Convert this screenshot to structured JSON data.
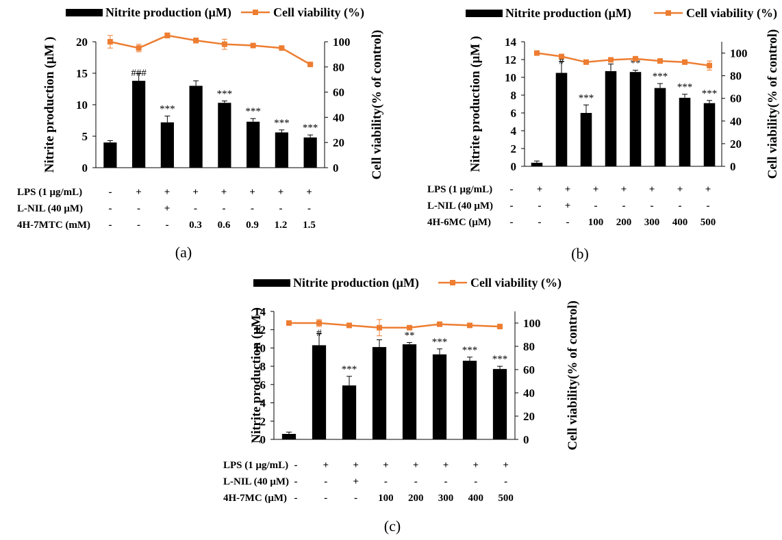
{
  "colors": {
    "bar": "#000000",
    "line": "#ED7D31",
    "axis": "#000000"
  },
  "legend": {
    "bar_label": "Nitrite production (μM)",
    "line_label": "Cell viability (%)"
  },
  "chart_data": [
    {
      "panel_label": "(a)",
      "type": "bar",
      "ylabel": "Nitrite production (μM )",
      "y2label": "Cell viability(% of control)",
      "ylim": [
        0,
        20
      ],
      "y_ticks": [
        0,
        5,
        10,
        15,
        20
      ],
      "y2lim": [
        0,
        100
      ],
      "y2_ticks": [
        0,
        20,
        40,
        60,
        80,
        100
      ],
      "condition_rows": [
        {
          "label": "LPS (1 μg/mL)",
          "values": [
            "-",
            "+",
            "+",
            "+",
            "+",
            "+",
            "+",
            "+"
          ]
        },
        {
          "label": "L-NIL (40 μM)",
          "values": [
            "-",
            "-",
            "+",
            "-",
            "-",
            "-",
            "-",
            "-"
          ]
        },
        {
          "label": "4H-7MTC (mM)",
          "values": [
            "-",
            "-",
            "-",
            "0.3",
            "0.6",
            "0.9",
            "1.2",
            "1.5"
          ]
        }
      ],
      "series": [
        {
          "name": "Nitrite production (μM)",
          "type": "bar",
          "values": [
            4.0,
            13.8,
            7.2,
            13.0,
            10.3,
            7.3,
            5.6,
            4.8
          ],
          "errors": [
            0.3,
            1.2,
            1.0,
            0.8,
            0.3,
            0.5,
            0.4,
            0.4
          ],
          "annotations": [
            "",
            "###",
            "***",
            "",
            "***",
            "***",
            "***",
            "***"
          ]
        },
        {
          "name": "Cell viability (%)",
          "type": "line",
          "axis": "right",
          "values": [
            100,
            95,
            105,
            101,
            98,
            97,
            95,
            82
          ],
          "errors": [
            5,
            3,
            2,
            2,
            4,
            1,
            1,
            1
          ]
        }
      ]
    },
    {
      "panel_label": "(b)",
      "type": "bar",
      "ylabel": "Nitrite production (μM )",
      "y2label": "Cell viability(% of control)",
      "ylim": [
        0,
        14
      ],
      "y_ticks": [
        0,
        2,
        4,
        6,
        8,
        10,
        12,
        14
      ],
      "y2lim": [
        0,
        110
      ],
      "y2_ticks": [
        0,
        20,
        40,
        60,
        80,
        100
      ],
      "condition_rows": [
        {
          "label": "LPS (1 μg/mL)",
          "values": [
            "-",
            "+",
            "+",
            "+",
            "+",
            "+",
            "+",
            "+"
          ]
        },
        {
          "label": "L-NIL (40 μM)",
          "values": [
            "-",
            "-",
            "+",
            "-",
            "-",
            "-",
            "-",
            "-"
          ]
        },
        {
          "label": "4H-6MC (μM)",
          "values": [
            "-",
            "-",
            "-",
            "100",
            "200",
            "300",
            "400",
            "500"
          ]
        }
      ],
      "series": [
        {
          "name": "Nitrite production (μM)",
          "type": "bar",
          "values": [
            0.4,
            10.5,
            6.0,
            10.7,
            10.6,
            8.8,
            7.7,
            7.1
          ],
          "errors": [
            0.2,
            1.3,
            0.9,
            0.8,
            0.2,
            0.5,
            0.4,
            0.3
          ],
          "annotations": [
            "",
            "#",
            "***",
            "",
            "**",
            "***",
            "***",
            "***"
          ]
        },
        {
          "name": "Cell viability (%)",
          "type": "line",
          "axis": "right",
          "values": [
            100,
            97,
            92,
            94,
            95,
            93,
            92,
            89
          ],
          "errors": [
            1,
            2,
            1,
            1,
            1,
            1,
            1,
            4
          ]
        }
      ]
    },
    {
      "panel_label": "(c)",
      "type": "bar",
      "ylabel": "Nitrite production (μM )",
      "y2label": "Cell viability(% of control)",
      "ylim": [
        0,
        14
      ],
      "y_ticks": [
        0,
        2,
        4,
        6,
        8,
        10,
        12,
        14
      ],
      "y2lim": [
        0,
        110
      ],
      "y2_ticks": [
        0,
        20,
        40,
        60,
        80,
        100
      ],
      "condition_rows": [
        {
          "label": "LPS (1 μg/mL)",
          "values": [
            "-",
            "+",
            "+",
            "+",
            "+",
            "+",
            "+",
            "+"
          ]
        },
        {
          "label": "L-NIL (40 μM)",
          "values": [
            "-",
            "-",
            "+",
            "-",
            "-",
            "-",
            "-",
            "-"
          ]
        },
        {
          "label": "4H-7MC (μM)",
          "values": [
            "-",
            "-",
            "-",
            "100",
            "200",
            "300",
            "400",
            "500"
          ]
        }
      ],
      "series": [
        {
          "name": "Nitrite production (μM)",
          "type": "bar",
          "values": [
            0.6,
            10.3,
            5.9,
            10.1,
            10.4,
            9.3,
            8.6,
            7.7
          ],
          "errors": [
            0.2,
            1.3,
            1.0,
            0.8,
            0.2,
            0.6,
            0.4,
            0.3
          ],
          "annotations": [
            "",
            "#",
            "***",
            "",
            "**",
            "***",
            "***",
            "***"
          ]
        },
        {
          "name": "Cell viability (%)",
          "type": "line",
          "axis": "right",
          "values": [
            100,
            100,
            98,
            96,
            96,
            99,
            98,
            97
          ],
          "errors": [
            2,
            3,
            2,
            7,
            1,
            1,
            1,
            1
          ]
        }
      ]
    }
  ]
}
